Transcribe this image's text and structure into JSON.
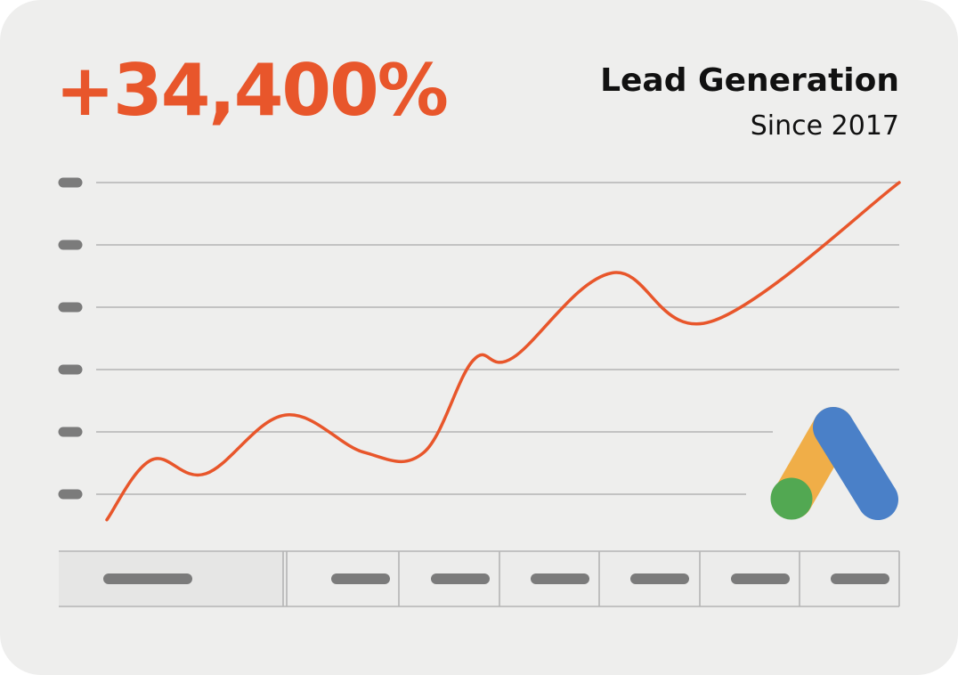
{
  "headline": {
    "value": "+34,400%"
  },
  "title": "Lead Generation",
  "subtitle": "Since 2017",
  "colors": {
    "line": "#e8562b",
    "headline": "#e8562b",
    "placeholder": "#7b7b7b",
    "grid": "#b4b4b4",
    "logo_yellow": "#f0ae48",
    "logo_blue": "#4a80c8",
    "logo_green": "#52a852"
  },
  "icon": "google-ads-logo",
  "chart_data": {
    "type": "line",
    "grid": true,
    "y_ticks_count": 6,
    "x_ticks_count": 7,
    "ylim": [
      0,
      6
    ],
    "xlim": [
      0,
      8
    ],
    "series": [
      {
        "values": [
          {
            "x": 0.0,
            "y": -0.41
          },
          {
            "x": 0.45,
            "y": 0.55
          },
          {
            "x": 1.0,
            "y": 0.33
          },
          {
            "x": 1.8,
            "y": 1.27
          },
          {
            "x": 2.6,
            "y": 0.67
          },
          {
            "x": 3.2,
            "y": 0.67
          },
          {
            "x": 3.7,
            "y": 2.15
          },
          {
            "x": 4.1,
            "y": 2.19
          },
          {
            "x": 5.1,
            "y": 3.55
          },
          {
            "x": 6.1,
            "y": 2.77
          },
          {
            "x": 8.0,
            "y": 5.0
          }
        ]
      }
    ]
  }
}
